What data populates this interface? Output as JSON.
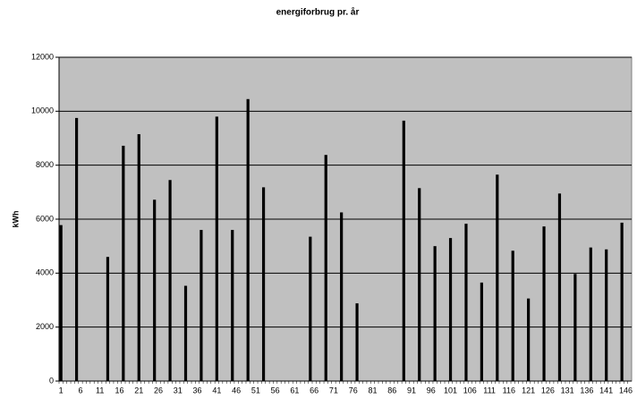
{
  "chart_data": {
    "type": "bar",
    "title": "energiforbrug pr. år",
    "y_label": "kWh",
    "color": "#000000",
    "background": "#c0c0c0",
    "grid": true,
    "ylim": [
      0,
      12000
    ],
    "yticks": [
      0,
      2000,
      4000,
      6000,
      8000,
      10000,
      12000
    ],
    "categories": [
      1,
      null,
      null,
      null,
      null,
      6,
      null,
      null,
      null,
      null,
      11,
      null,
      null,
      null,
      null,
      16,
      null,
      null,
      null,
      null,
      21,
      null,
      null,
      null,
      null,
      26,
      null,
      null,
      null,
      null,
      31,
      null,
      null,
      null,
      null,
      36,
      null,
      null,
      null,
      null,
      41,
      null,
      null,
      null,
      null,
      46,
      null,
      null,
      null,
      null,
      51,
      null,
      null,
      null,
      null,
      56,
      null,
      null,
      null,
      null,
      61,
      null,
      null,
      null,
      null,
      66,
      null,
      null,
      null,
      null,
      71,
      null,
      null,
      null,
      null,
      76,
      null,
      null,
      null,
      null,
      81,
      null,
      null,
      null,
      null,
      86,
      null,
      null,
      null,
      null,
      91,
      null,
      null,
      null,
      null,
      96,
      null,
      null,
      null,
      null,
      101,
      null,
      null,
      null,
      null,
      106,
      null,
      null,
      null,
      null,
      111,
      null,
      null,
      null,
      null,
      116,
      null,
      null,
      null,
      null,
      121,
      null,
      null,
      null,
      null,
      126,
      null,
      null,
      null,
      null,
      131,
      null,
      null,
      null,
      null,
      136,
      null,
      null,
      null,
      null,
      141,
      null,
      null,
      null,
      null,
      146,
      null
    ],
    "values": [
      5780,
      null,
      null,
      null,
      9750,
      null,
      null,
      null,
      null,
      null,
      null,
      null,
      4600,
      null,
      null,
      null,
      8720,
      null,
      null,
      null,
      9150,
      null,
      null,
      null,
      6720,
      null,
      null,
      null,
      7450,
      null,
      null,
      null,
      3530,
      null,
      null,
      null,
      5600,
      null,
      null,
      null,
      9800,
      null,
      null,
      null,
      5600,
      null,
      null,
      null,
      10450,
      null,
      null,
      null,
      7180,
      null,
      null,
      null,
      null,
      null,
      null,
      null,
      null,
      null,
      null,
      null,
      5350,
      null,
      null,
      null,
      8380,
      null,
      null,
      null,
      6250,
      null,
      null,
      null,
      2880,
      null,
      null,
      null,
      null,
      null,
      null,
      null,
      null,
      null,
      null,
      null,
      9650,
      null,
      null,
      null,
      7150,
      null,
      null,
      null,
      5000,
      null,
      null,
      null,
      5300,
      null,
      null,
      null,
      5830,
      null,
      null,
      null,
      3650,
      null,
      null,
      null,
      7650,
      null,
      null,
      null,
      4830,
      null,
      null,
      null,
      3060,
      null,
      null,
      null,
      5730,
      null,
      null,
      null,
      6950,
      null,
      null,
      null,
      3970,
      null,
      null,
      null,
      4950,
      null,
      null,
      null,
      4880,
      null,
      null,
      null,
      5870,
      null,
      null
    ]
  }
}
